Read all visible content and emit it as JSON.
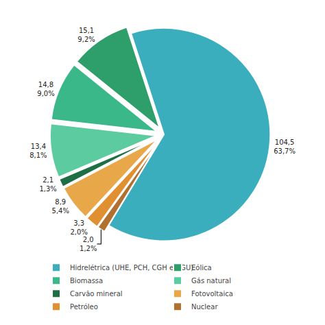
{
  "chart_data": {
    "type": "pie",
    "categories": [
      "Hidrelétrica (UHE, PCH, CGH e CGU)",
      "Eólica",
      "Biomassa",
      "Gás natural",
      "Carvão mineral",
      "Fotovoltaica",
      "Petróleo",
      "Nuclear"
    ],
    "values": [
      104.5,
      15.1,
      14.8,
      13.4,
      2.1,
      8.9,
      3.3,
      2.0
    ],
    "value_labels": [
      "104,5",
      "15,1",
      "14,8",
      "13,4",
      "2,1",
      "8,9",
      "3,3",
      "2,0"
    ],
    "percentages": [
      63.7,
      9.2,
      9.0,
      8.1,
      1.3,
      5.4,
      2.0,
      1.2
    ],
    "percentage_labels": [
      "63,7%",
      "9,2%",
      "9,0%",
      "8,1%",
      "1,3%",
      "5,4%",
      "2,0%",
      "1,2%"
    ],
    "colors": [
      "#3aaebc",
      "#2e9e6b",
      "#3ab88a",
      "#5ccca0",
      "#1e6e46",
      "#e8a84a",
      "#e09030",
      "#b07030"
    ],
    "data_labels": true,
    "legend": "bottom"
  }
}
